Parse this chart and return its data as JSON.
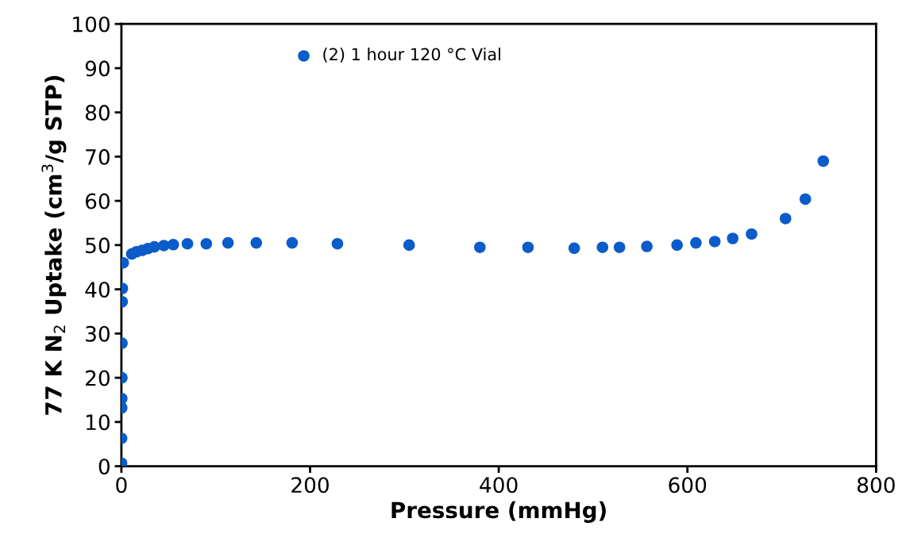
{
  "chart_data": {
    "type": "scatter",
    "xlabel": "Pressure (mmHg)",
    "ylabel": "77 K N$_{2}$ Uptake (cm$^{3}$/g STP)",
    "series": [
      {
        "name": "(2) 1 hour 120 °C Vial",
        "color": "#0b5bc9",
        "x": [
          0.1,
          0.2,
          0.3,
          0.4,
          0.5,
          0.6,
          0.8,
          1,
          2,
          4,
          7,
          11,
          16,
          22,
          28,
          35,
          45,
          55,
          70,
          90,
          113,
          143,
          181,
          229,
          305,
          380,
          431,
          480,
          510,
          528,
          557,
          589,
          609,
          629,
          648,
          668,
          704,
          725,
          744
        ],
        "values": [
          0.7,
          6.3,
          13.2,
          15.3,
          20,
          27.8,
          37.2,
          40.2,
          46,
          null,
          null,
          48,
          48.5,
          48.8,
          49.2,
          49.6,
          49.9,
          50.1,
          50.3,
          50.3,
          50.5,
          50.5,
          50.5,
          50.3,
          50,
          49.5,
          49.5,
          49.3,
          49.5,
          49.5,
          49.7,
          50,
          50.5,
          50.8,
          51.5,
          52.5,
          56,
          60.4,
          69
        ]
      }
    ],
    "xlim": [
      0,
      800
    ],
    "xticks": [
      0,
      200,
      400,
      600,
      800
    ],
    "ylim": [
      0,
      100
    ],
    "yticks": [
      0,
      10,
      20,
      30,
      40,
      50,
      60,
      70,
      80,
      90,
      100
    ],
    "marker": "circle",
    "grid": false,
    "legend": "top left"
  }
}
